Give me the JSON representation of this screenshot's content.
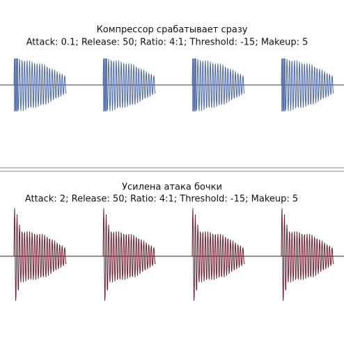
{
  "panels": [
    {
      "title": "Компрессор срабатывает сразу",
      "subtitle": "Attack: 0.1; Release: 50; Ratio: 4:1; Threshold: -15; Makeup: 5"
    },
    {
      "title": "Усилена атака бочки",
      "subtitle": "Attack: 2; Release: 50; Ratio: 4:1; Threshold: -15; Makeup: 5"
    }
  ]
}
